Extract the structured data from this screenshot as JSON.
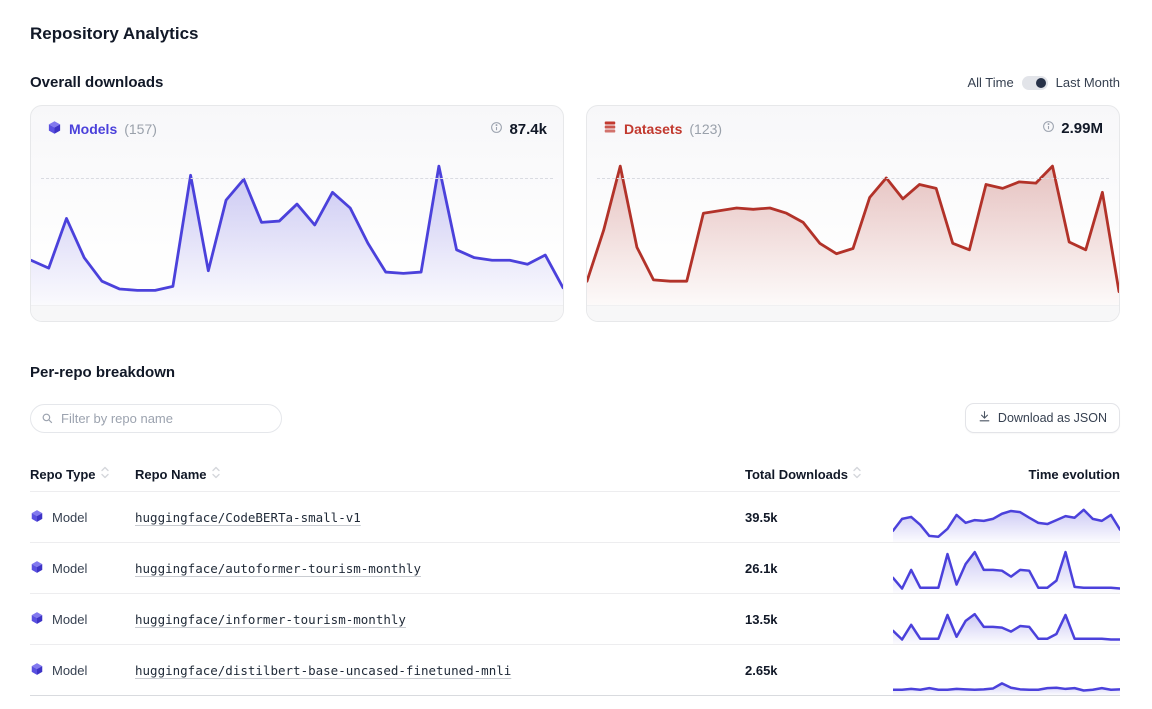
{
  "page": {
    "title": "Repository Analytics"
  },
  "overall": {
    "heading": "Overall downloads",
    "toggle": {
      "left_label": "All Time",
      "right_label": "Last Month",
      "selected": "Last Month"
    },
    "cards": [
      {
        "label": "Models",
        "count": "(157)",
        "total": "87.4k",
        "accent": "#4b41db",
        "icon": "cube-icon"
      },
      {
        "label": "Datasets",
        "count": "(123)",
        "total": "2.99M",
        "accent": "#c2392f",
        "icon": "database-stack-icon"
      }
    ]
  },
  "breakdown": {
    "heading": "Per-repo breakdown",
    "filter": {
      "placeholder": "Filter by repo name",
      "value": "",
      "icon": "search-icon"
    },
    "download_button": {
      "label": "Download as JSON",
      "icon": "download-icon"
    },
    "table": {
      "columns": [
        {
          "label": "Repo Type",
          "sortable": true
        },
        {
          "label": "Repo Name",
          "sortable": true
        },
        {
          "label": "Total Downloads",
          "sortable": true
        },
        {
          "label": "Time evolution",
          "sortable": false
        }
      ],
      "rows": [
        {
          "type": "Model",
          "icon": "cube-icon",
          "name": "huggingface/CodeBERTa-small-v1",
          "downloads": "39.5k"
        },
        {
          "type": "Model",
          "icon": "cube-icon",
          "name": "huggingface/autoformer-tourism-monthly",
          "downloads": "26.1k"
        },
        {
          "type": "Model",
          "icon": "cube-icon",
          "name": "huggingface/informer-tourism-monthly",
          "downloads": "13.5k"
        },
        {
          "type": "Model",
          "icon": "cube-icon",
          "name": "huggingface/distilbert-base-uncased-finetuned-mnli",
          "downloads": "2.65k"
        }
      ]
    }
  },
  "chart_data": [
    {
      "id": "models-overall-downloads",
      "type": "area",
      "title": "Models",
      "repo_count": 157,
      "total_label": "87.4k",
      "color": "#4b41db",
      "xlabel": "",
      "ylabel": "",
      "legend": "none",
      "relative_values_0_100": [
        28,
        22,
        60,
        30,
        12,
        6,
        5,
        5,
        8,
        93,
        20,
        74,
        90,
        57,
        58,
        71,
        55,
        80,
        68,
        41,
        19,
        18,
        19,
        100,
        36,
        30,
        28,
        28,
        25,
        32,
        7
      ]
    },
    {
      "id": "datasets-overall-downloads",
      "type": "area",
      "title": "Datasets",
      "repo_count": 123,
      "total_label": "2.99M",
      "color": "#b23229",
      "xlabel": "",
      "ylabel": "",
      "legend": "none",
      "relative_values_0_100": [
        12,
        51,
        100,
        38,
        13,
        12,
        12,
        64,
        66,
        68,
        67,
        68,
        64,
        57,
        41,
        33,
        37,
        76,
        91,
        75,
        86,
        83,
        41,
        36,
        86,
        83,
        88,
        87,
        100,
        42,
        36,
        80,
        4
      ]
    },
    {
      "id": "sparkline-CodeBERTa-small-v1",
      "type": "area",
      "title": "Time evolution",
      "color": "#4b41db",
      "relative_values_0_100": [
        25,
        55,
        60,
        40,
        12,
        10,
        30,
        65,
        45,
        52,
        50,
        55,
        68,
        75,
        72,
        58,
        45,
        42,
        52,
        62,
        58,
        78,
        55,
        50,
        65,
        28
      ]
    },
    {
      "id": "sparkline-autoformer-tourism-monthly",
      "type": "area",
      "title": "Time evolution",
      "color": "#4b41db",
      "relative_values_0_100": [
        35,
        8,
        55,
        10,
        10,
        10,
        95,
        18,
        70,
        100,
        55,
        55,
        53,
        38,
        55,
        53,
        10,
        10,
        28,
        100,
        12,
        10,
        10,
        10,
        10,
        8
      ]
    },
    {
      "id": "sparkline-informer-tourism-monthly",
      "type": "area",
      "title": "Time evolution",
      "color": "#4b41db",
      "relative_values_0_100": [
        30,
        8,
        45,
        10,
        10,
        10,
        70,
        15,
        55,
        72,
        40,
        40,
        38,
        28,
        42,
        40,
        10,
        10,
        22,
        70,
        10,
        10,
        10,
        10,
        8,
        8
      ]
    },
    {
      "id": "sparkline-distilbert-base-uncased-finetuned-mnli",
      "type": "area",
      "title": "Time evolution",
      "color": "#4b41db",
      "relative_values_0_100": [
        10,
        10,
        12,
        10,
        14,
        10,
        10,
        12,
        11,
        10,
        11,
        13,
        26,
        15,
        11,
        10,
        10,
        14,
        15,
        12,
        14,
        8,
        10,
        14,
        10,
        11
      ]
    }
  ]
}
